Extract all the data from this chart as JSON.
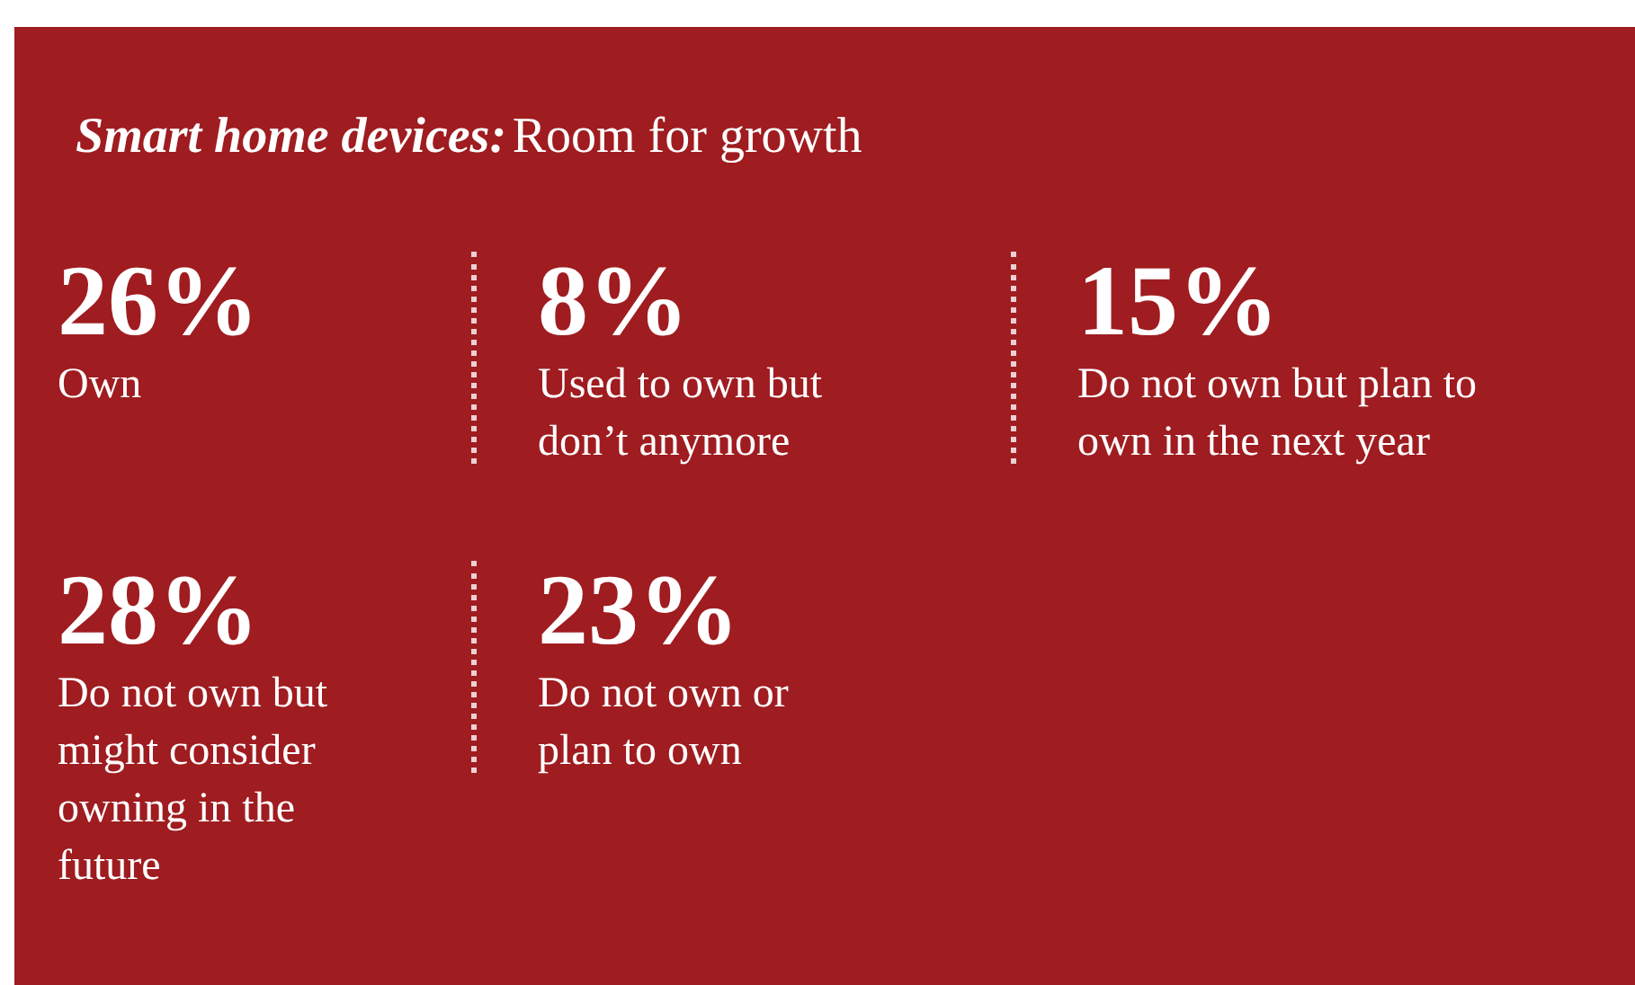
{
  "chart_data": {
    "type": "other",
    "title": "Smart home devices:",
    "subtitle": "Room for growth",
    "color": "#9f1c20",
    "categories": [
      "Own",
      "Used to own but don’t anymore",
      "Do not own but plan to own in the next year",
      "Do not own but might consider owning in the future",
      "Do not own or plan to own"
    ],
    "values": [
      26,
      8,
      15,
      28,
      23
    ],
    "value_labels": [
      "26%",
      "8%",
      "15%",
      "28%",
      "23%"
    ]
  }
}
